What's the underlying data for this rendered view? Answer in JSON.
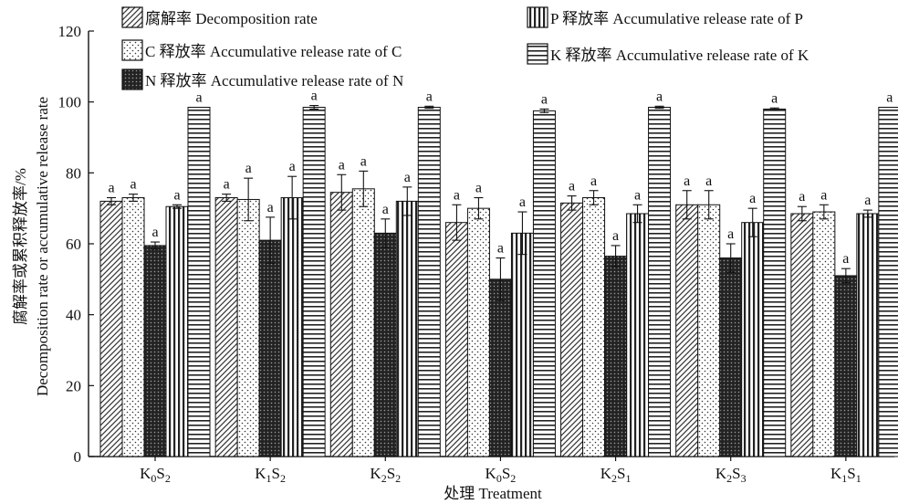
{
  "chart_data": {
    "type": "bar",
    "categories": [
      {
        "base": "K",
        "sub1": "0",
        "mid": "S",
        "sub2": "2"
      },
      {
        "base": "K",
        "sub1": "1",
        "mid": "S",
        "sub2": "2"
      },
      {
        "base": "K",
        "sub1": "2",
        "mid": "S",
        "sub2": "2"
      },
      {
        "base": "K",
        "sub1": "0",
        "mid": "S",
        "sub2": "2"
      },
      {
        "base": "K",
        "sub1": "2",
        "mid": "S",
        "sub2": "1"
      },
      {
        "base": "K",
        "sub1": "2",
        "mid": "S",
        "sub2": "3"
      },
      {
        "base": "K",
        "sub1": "1",
        "mid": "S",
        "sub2": "1"
      }
    ],
    "series": [
      {
        "name": "腐解率 Decomposition rate",
        "pattern": "diagonal",
        "values": [
          72,
          73,
          74.5,
          66,
          71.5,
          71,
          68.5
        ],
        "errors": [
          1,
          1,
          5,
          5,
          2,
          4,
          2
        ],
        "labels": [
          "a",
          "a",
          "a",
          "a",
          "a",
          "a",
          "a"
        ]
      },
      {
        "name": "C 释放率 Accumulative release rate of C",
        "pattern": "dots",
        "values": [
          73,
          72.5,
          75.5,
          70,
          73,
          71,
          69
        ],
        "errors": [
          1,
          6,
          5,
          3,
          2,
          4,
          2
        ],
        "labels": [
          "a",
          "a",
          "a",
          "a",
          "a",
          "a",
          "a"
        ]
      },
      {
        "name": "N 释放率 Accumulative release rate of N",
        "pattern": "dense",
        "values": [
          59.5,
          61,
          63,
          50,
          56.5,
          56,
          51
        ],
        "errors": [
          1,
          6.5,
          4,
          6,
          3,
          4,
          2
        ],
        "labels": [
          "a",
          "a",
          "a",
          "a",
          "a",
          "a",
          "a"
        ]
      },
      {
        "name": "P 释放率 Accumulative release rate of P",
        "pattern": "vertical",
        "values": [
          70.5,
          73,
          72,
          63,
          68.5,
          66,
          68.5
        ],
        "errors": [
          0.5,
          6,
          4,
          6,
          2.5,
          4,
          1
        ],
        "labels": [
          "a",
          "a",
          "a",
          "a",
          "a",
          "a",
          "a"
        ]
      },
      {
        "name": "K 释放率 Accumulative release rate of K",
        "pattern": "horizontal",
        "values": [
          98.5,
          98.5,
          98.5,
          97.5,
          98.5,
          98,
          98.5
        ],
        "errors": [
          0,
          0.5,
          0.3,
          0.5,
          0.3,
          0.3,
          0
        ],
        "labels": [
          "a",
          "a",
          "a",
          "a",
          "a",
          "a",
          "a"
        ]
      }
    ],
    "ylim": [
      0,
      120
    ],
    "yticks": [
      0,
      20,
      40,
      60,
      80,
      100,
      120
    ],
    "ylabel_cn": "腐解率或累积释放率/%",
    "ylabel_en": "Decomposition rate or accumulative release rate",
    "xlabel": "处理 Treatment",
    "legend_position": "top"
  }
}
